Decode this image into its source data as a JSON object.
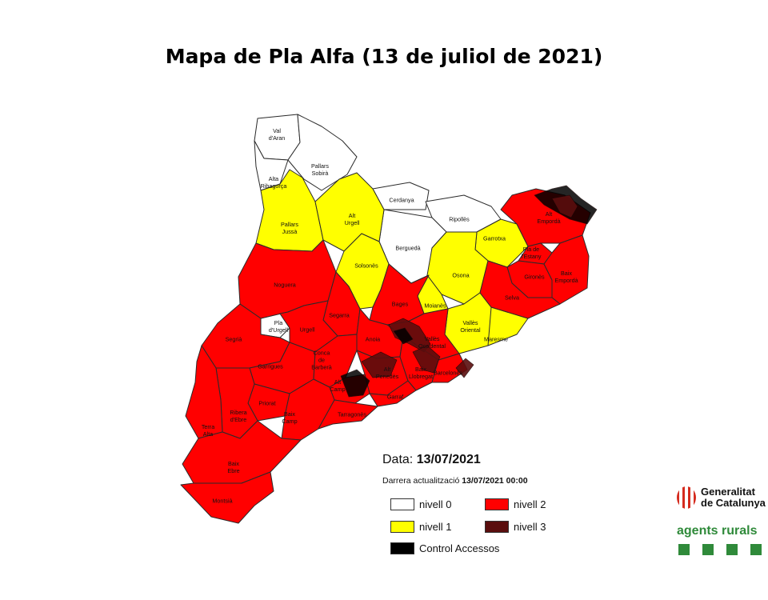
{
  "title": "Mapa de Pla Alfa (13 de juliol de 2021)",
  "colors": {
    "nivell_0": "#ffffff",
    "nivell_1": "#ffff00",
    "nivell_2": "#ff0000",
    "nivell_3": "#5a0e0e",
    "control_accessos": "#000000"
  },
  "legend": {
    "date_label": "Data:",
    "date_value": "13/07/2021",
    "updated_label": "Darrera actualització",
    "updated_value": "13/07/2021 00:00",
    "items": [
      {
        "label": "nivell 0",
        "level": "nivell_0"
      },
      {
        "label": "nivell 2",
        "level": "nivell_2"
      },
      {
        "label": "nivell 1",
        "level": "nivell_1"
      },
      {
        "label": "nivell 3",
        "level": "nivell_3"
      },
      {
        "label": "Control Accessos",
        "level": "control_accessos"
      }
    ]
  },
  "regions": [
    {
      "name": "Val d'Aran",
      "lines": [
        "Val",
        "d'Aran"
      ],
      "level": "nivell_0"
    },
    {
      "name": "Pallars Sobirà",
      "lines": [
        "Pallars",
        "Sobirà"
      ],
      "level": "nivell_0"
    },
    {
      "name": "Alta Ribagorça",
      "lines": [
        "Alta",
        "Ribagorça"
      ],
      "level": "nivell_0"
    },
    {
      "name": "Cerdanya",
      "lines": [
        "Cerdanya"
      ],
      "level": "nivell_0"
    },
    {
      "name": "Ripollès",
      "lines": [
        "Ripollès"
      ],
      "level": "nivell_0"
    },
    {
      "name": "Berguedà",
      "lines": [
        "Berguedà"
      ],
      "level": "nivell_0"
    },
    {
      "name": "Pla d'Urgell",
      "lines": [
        "Pla",
        "d'Urgell"
      ],
      "level": "nivell_0"
    },
    {
      "name": "Pallars Jussà",
      "lines": [
        "Pallars",
        "Jussà"
      ],
      "level": "nivell_1"
    },
    {
      "name": "Alt Urgell",
      "lines": [
        "Alt",
        "Urgell"
      ],
      "level": "nivell_1"
    },
    {
      "name": "Solsonès",
      "lines": [
        "Solsonès"
      ],
      "level": "nivell_1"
    },
    {
      "name": "Garrotxa",
      "lines": [
        "Garrotxa"
      ],
      "level": "nivell_1"
    },
    {
      "name": "Osona",
      "lines": [
        "Osona"
      ],
      "level": "nivell_1"
    },
    {
      "name": "Moianès",
      "lines": [
        "Moianès"
      ],
      "level": "nivell_1"
    },
    {
      "name": "Vallès Oriental",
      "lines": [
        "Vallès",
        "Oriental"
      ],
      "level": "nivell_1"
    },
    {
      "name": "Maresme",
      "lines": [
        "Maresme"
      ],
      "level": "nivell_1"
    },
    {
      "name": "Alt Empordà",
      "lines": [
        "Alt",
        "Empordà"
      ],
      "level": "nivell_2"
    },
    {
      "name": "Pla de l'Estany",
      "lines": [
        "Pla de",
        "l'Estany"
      ],
      "level": "nivell_2"
    },
    {
      "name": "Gironès",
      "lines": [
        "Gironès"
      ],
      "level": "nivell_2"
    },
    {
      "name": "Baix Empordà",
      "lines": [
        "Baix",
        "Empordà"
      ],
      "level": "nivell_2"
    },
    {
      "name": "Selva",
      "lines": [
        "Selva"
      ],
      "level": "nivell_2"
    },
    {
      "name": "Noguera",
      "lines": [
        "Noguera"
      ],
      "level": "nivell_2"
    },
    {
      "name": "Segarra",
      "lines": [
        "Segarra"
      ],
      "level": "nivell_2"
    },
    {
      "name": "Urgell",
      "lines": [
        "Urgell"
      ],
      "level": "nivell_2"
    },
    {
      "name": "Segrià",
      "lines": [
        "Segrià"
      ],
      "level": "nivell_2"
    },
    {
      "name": "Bages",
      "lines": [
        "Bages"
      ],
      "level": "nivell_2"
    },
    {
      "name": "Anoia",
      "lines": [
        "Anoia"
      ],
      "level": "nivell_2"
    },
    {
      "name": "Vallès Occidental",
      "lines": [
        "Vallès",
        "Occidental"
      ],
      "level": "nivell_2"
    },
    {
      "name": "Garrigues",
      "lines": [
        "Garrigues"
      ],
      "level": "nivell_2"
    },
    {
      "name": "Conca de Barberà",
      "lines": [
        "Conca",
        "de",
        "Barberà"
      ],
      "level": "nivell_2"
    },
    {
      "name": "Alt Penedès",
      "lines": [
        "Alt",
        "Penedès"
      ],
      "level": "nivell_2"
    },
    {
      "name": "Baix Llobregat",
      "lines": [
        "Baix",
        "Llobregat"
      ],
      "level": "nivell_2"
    },
    {
      "name": "Barcelonès",
      "lines": [
        "Barcelonès"
      ],
      "level": "nivell_2"
    },
    {
      "name": "Alt Camp",
      "lines": [
        "Alt",
        "Camp"
      ],
      "level": "nivell_2"
    },
    {
      "name": "Garraf",
      "lines": [
        "Garraf"
      ],
      "level": "nivell_2"
    },
    {
      "name": "Priorat",
      "lines": [
        "Priorat"
      ],
      "level": "nivell_2"
    },
    {
      "name": "Ribera d'Ebre",
      "lines": [
        "Ribera",
        "d'Ebre"
      ],
      "level": "nivell_2"
    },
    {
      "name": "Baix Camp",
      "lines": [
        "Baix",
        "Camp"
      ],
      "level": "nivell_2"
    },
    {
      "name": "Tarragonès",
      "lines": [
        "Tarragonès"
      ],
      "level": "nivell_2"
    },
    {
      "name": "Terra Alta",
      "lines": [
        "Terra",
        "Alta"
      ],
      "level": "nivell_2"
    },
    {
      "name": "Baix Ebre",
      "lines": [
        "Baix",
        "Ebre"
      ],
      "level": "nivell_2"
    },
    {
      "name": "Montsià",
      "lines": [
        "Montsià"
      ],
      "level": "nivell_2"
    }
  ],
  "zones": [
    {
      "name": "Cap de Creus",
      "level": "control_accessos"
    },
    {
      "name": "Alt Empordà nord",
      "level": "nivell_3"
    },
    {
      "name": "Serralada de Marina",
      "level": "nivell_3"
    },
    {
      "name": "Montserrat",
      "level": "nivell_3"
    },
    {
      "name": "Sant Llorenç del Munt",
      "level": "control_accessos"
    },
    {
      "name": "Garraf",
      "level": "nivell_3"
    },
    {
      "name": "Ordal",
      "level": "nivell_3"
    },
    {
      "name": "Montmell",
      "level": "control_accessos"
    }
  ],
  "brand": {
    "generalitat_line1": "Generalitat",
    "generalitat_line2": "de Catalunya",
    "agents": "agents rurals"
  }
}
